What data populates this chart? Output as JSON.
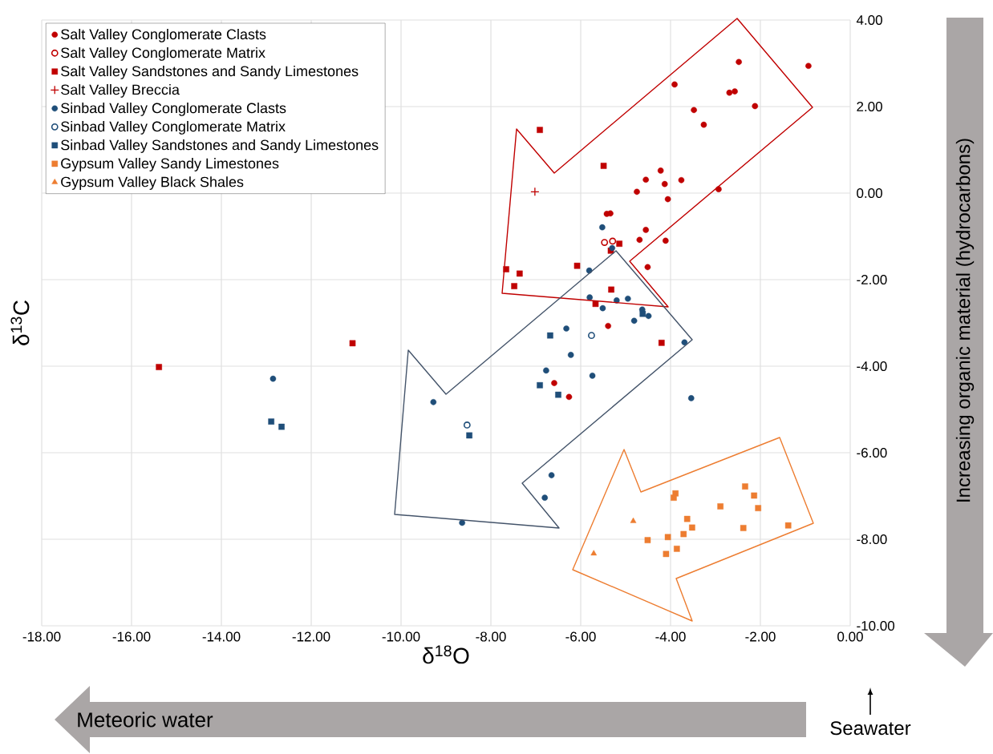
{
  "chart_data": {
    "type": "scatter",
    "xlabel": "δ$^{18}$O",
    "ylabel": "δ$^{13}$C",
    "xlim": [
      -18,
      0
    ],
    "ylim": [
      -10,
      4
    ],
    "xticks": [
      {
        "value": -18,
        "label": "-18.00"
      },
      {
        "value": -16,
        "label": "-16.00"
      },
      {
        "value": -14,
        "label": "-14.00"
      },
      {
        "value": -12,
        "label": "-12.00"
      },
      {
        "value": -10,
        "label": "-10.00"
      },
      {
        "value": -8,
        "label": "-8.00"
      },
      {
        "value": -6,
        "label": "-6.00"
      },
      {
        "value": -4,
        "label": "-4.00"
      },
      {
        "value": -2,
        "label": "-2.00"
      },
      {
        "value": 0,
        "label": "0.00"
      }
    ],
    "yticks": [
      {
        "value": -10,
        "label": "-10.00"
      },
      {
        "value": -8,
        "label": "-8.00"
      },
      {
        "value": -6,
        "label": "-6.00"
      },
      {
        "value": -4,
        "label": "-4.00"
      },
      {
        "value": -2,
        "label": "-2.00"
      },
      {
        "value": 0,
        "label": "0.00"
      },
      {
        "value": 2,
        "label": "2.00"
      },
      {
        "value": 4,
        "label": "4.00"
      }
    ],
    "grid": true,
    "legend": "top left",
    "series": [
      {
        "name": "Salt Valley Conglomerate Clasts",
        "color": "#c00000",
        "marker": "circle",
        "x": [
          -2.48,
          -0.93,
          -3.91,
          -2.69,
          -2.57,
          -2.12,
          -3.48,
          -3.26,
          -4.22,
          -4.55,
          -4.13,
          -3.76,
          -4.75,
          -2.93,
          -4.06,
          -5.42,
          -5.34,
          -4.55,
          -4.69,
          -4.11,
          -4.51,
          -5.39,
          -6.59,
          -6.26
        ],
        "values": [
          3.03,
          2.94,
          2.51,
          2.32,
          2.35,
          2.01,
          1.92,
          1.58,
          0.52,
          0.31,
          0.21,
          0.3,
          0.03,
          0.09,
          -0.14,
          -0.48,
          -0.47,
          -0.85,
          -1.08,
          -1.1,
          -1.71,
          -3.07,
          -4.39,
          -4.71
        ]
      },
      {
        "name": "Salt Valley Conglomerate Matrix",
        "color": "#c00000",
        "marker": "circle-open",
        "x": [
          -5.47,
          -5.29
        ],
        "values": [
          -1.14,
          -1.11
        ]
      },
      {
        "name": "Salt Valley Sandstones and Sandy Limestones",
        "color": "#c00000",
        "marker": "square",
        "x": [
          -6.91,
          -5.49,
          -5.14,
          -5.33,
          -7.66,
          -7.36,
          -6.08,
          -7.48,
          -5.32,
          -5.67,
          -4.2,
          -11.08,
          -15.39
        ],
        "values": [
          1.46,
          0.63,
          -1.17,
          -1.33,
          -1.76,
          -1.86,
          -1.68,
          -2.15,
          -2.23,
          -2.56,
          -3.46,
          -3.47,
          -4.02
        ]
      },
      {
        "name": "Salt Valley Breccia",
        "color": "#c00000",
        "marker": "cross",
        "x": [
          -7.02
        ],
        "values": [
          0.03
        ]
      },
      {
        "name": "Sinbad Valley Conglomerate Clasts",
        "color": "#1f4e79",
        "marker": "circle",
        "x": [
          -5.52,
          -5.3,
          -5.81,
          -5.8,
          -5.2,
          -4.95,
          -5.51,
          -4.63,
          -4.49,
          -4.81,
          -6.32,
          -6.22,
          -6.77,
          -5.74,
          -3.69,
          -3.54,
          -9.28,
          -6.65,
          -6.8,
          -8.64,
          -12.85
        ],
        "values": [
          -0.79,
          -1.27,
          -1.79,
          -2.41,
          -2.48,
          -2.44,
          -2.66,
          -2.69,
          -2.84,
          -2.95,
          -3.13,
          -3.74,
          -4.1,
          -4.22,
          -3.45,
          -4.74,
          -4.83,
          -6.52,
          -7.04,
          -7.62,
          -4.29
        ]
      },
      {
        "name": "Sinbad Valley Conglomerate Matrix",
        "color": "#1f4e79",
        "marker": "circle-open",
        "x": [
          -5.76,
          -8.53
        ],
        "values": [
          -3.29,
          -5.36
        ]
      },
      {
        "name": "Sinbad Valley Sandstones and Sandy Limestones",
        "color": "#1f4e79",
        "marker": "square",
        "x": [
          -4.62,
          -6.68,
          -6.91,
          -6.5,
          -8.48,
          -12.89,
          -12.66
        ],
        "values": [
          -2.79,
          -3.29,
          -4.44,
          -4.66,
          -5.6,
          -5.28,
          -5.4
        ]
      },
      {
        "name": "Gypsum Valley Sandy Limestones",
        "color": "#ed7d31",
        "marker": "square",
        "x": [
          -2.34,
          -2.14,
          -2.05,
          -2.89,
          -3.89,
          -3.93,
          -3.63,
          -3.52,
          -3.71,
          -4.06,
          -4.51,
          -3.86,
          -4.1,
          -2.38,
          -1.38
        ],
        "values": [
          -6.78,
          -6.99,
          -7.28,
          -7.24,
          -6.94,
          -7.04,
          -7.53,
          -7.73,
          -7.88,
          -7.95,
          -8.02,
          -8.22,
          -8.34,
          -7.74,
          -7.68
        ]
      },
      {
        "name": "Gypsum Valley Black Shales",
        "color": "#ed7d31",
        "marker": "triangle",
        "x": [
          -4.83,
          -5.71
        ],
        "values": [
          -7.58,
          -8.33
        ]
      }
    ],
    "annotations": [
      "Meteoric water",
      "Seawater",
      "Increasing organic material (hydrocarbons)"
    ]
  }
}
